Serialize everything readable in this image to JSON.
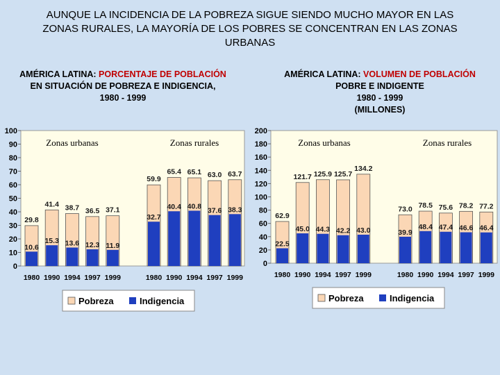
{
  "title": "AUNQUE LA INCIDENCIA DE LA POBREZA SIGUE SIENDO MUCHO MAYOR EN LAS ZONAS RURALES, LA MAYORÍA DE LOS POBRES SE CONCENTRAN EN LAS ZONAS URBANAS",
  "colors": {
    "pobreza": "#fbd7b5",
    "indigencia": "#1f3fbf",
    "highlight": "#c00000",
    "plot_bg": "#fffde8"
  },
  "chart_data": [
    {
      "type": "bar",
      "title_prefix": "AMÉRICA LATINA: ",
      "title_highlight": "PORCENTAJE DE POBLACIÓN",
      "title_rest": "EN SITUACIÓN DE POBREZA E INDIGENCIA,",
      "title_years": "1980 - 1999",
      "title_units": "",
      "ylim": [
        0,
        100
      ],
      "yticks": [
        "0",
        "10",
        "20",
        "30",
        "40",
        "50",
        "60",
        "70",
        "80",
        "90",
        "100"
      ],
      "groups": [
        {
          "label": "Zonas urbanas",
          "categories": [
            "1980",
            "1990",
            "1994",
            "1997",
            "1999"
          ],
          "series": [
            {
              "name": "Pobreza",
              "values": [
                29.8,
                41.4,
                38.7,
                36.5,
                37.1
              ]
            },
            {
              "name": "Indigencia",
              "values": [
                10.6,
                15.3,
                13.6,
                12.3,
                11.9
              ]
            }
          ]
        },
        {
          "label": "Zonas rurales",
          "categories": [
            "1980",
            "1990",
            "1994",
            "1997",
            "1999"
          ],
          "series": [
            {
              "name": "Pobreza",
              "values": [
                59.9,
                65.4,
                65.1,
                63.0,
                63.7
              ]
            },
            {
              "name": "Indigencia",
              "values": [
                32.7,
                40.4,
                40.8,
                37.6,
                38.3
              ]
            }
          ]
        }
      ],
      "legend": [
        "Pobreza",
        "Indigencia"
      ],
      "legend_position": "bottom"
    },
    {
      "type": "bar",
      "title_prefix": "AMÉRICA LATINA: ",
      "title_highlight": "VOLUMEN DE POBLACIÓN",
      "title_rest": "POBRE E INDIGENTE",
      "title_years": "1980 - 1999",
      "title_units": "(MILLONES)",
      "ylim": [
        0,
        200
      ],
      "yticks": [
        "0",
        "20",
        "40",
        "60",
        "80",
        "100",
        "120",
        "140",
        "160",
        "180",
        "200"
      ],
      "groups": [
        {
          "label": "Zonas urbanas",
          "categories": [
            "1980",
            "1990",
            "1994",
            "1997",
            "1999"
          ],
          "series": [
            {
              "name": "Pobreza",
              "values": [
                62.9,
                121.7,
                125.9,
                125.7,
                134.2
              ]
            },
            {
              "name": "Indigencia",
              "values": [
                22.5,
                45.0,
                44.3,
                42.2,
                43.0
              ]
            }
          ]
        },
        {
          "label": "Zonas rurales",
          "categories": [
            "1980",
            "1990",
            "1994",
            "1997",
            "1999"
          ],
          "series": [
            {
              "name": "Pobreza",
              "values": [
                73.0,
                78.5,
                75.6,
                78.2,
                77.2
              ]
            },
            {
              "name": "Indigencia",
              "values": [
                39.9,
                48.4,
                47.4,
                46.6,
                46.4
              ]
            }
          ]
        }
      ],
      "legend": [
        "Pobreza",
        "Indigencia"
      ],
      "legend_position": "bottom"
    }
  ]
}
